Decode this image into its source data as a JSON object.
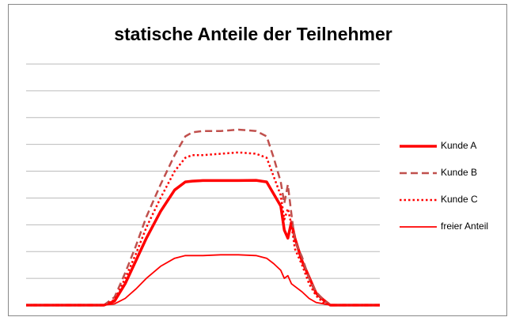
{
  "chart_data": {
    "type": "line",
    "title": "statische Anteile der Teilnehmer",
    "x": [
      0,
      20,
      22,
      25,
      28,
      31,
      34,
      38,
      42,
      45,
      47,
      50,
      55,
      60,
      65,
      68,
      70,
      72,
      73,
      74,
      75,
      76,
      78,
      80,
      82,
      84,
      86,
      88,
      90,
      100
    ],
    "xlim": [
      0,
      100
    ],
    "ylim": [
      0,
      9
    ],
    "yticks": [
      0,
      1,
      2,
      3,
      4,
      5,
      6,
      7,
      8,
      9
    ],
    "grid": true,
    "legend": "right",
    "series": [
      {
        "name": "Kunde A",
        "color": "#ff0000",
        "dash": "solid",
        "width": 3.5,
        "values": [
          0,
          0,
          0,
          0.15,
          0.8,
          1.65,
          2.5,
          3.5,
          4.3,
          4.6,
          4.63,
          4.65,
          4.65,
          4.65,
          4.66,
          4.6,
          4.15,
          3.7,
          2.8,
          2.5,
          3.1,
          2.5,
          1.65,
          1.05,
          0.45,
          0.2,
          0,
          0,
          0,
          0
        ]
      },
      {
        "name": "Kunde B",
        "color": "#c0504d",
        "dash": "dashed",
        "width": 2.5,
        "values": [
          0,
          0,
          0,
          0.3,
          1.2,
          2.2,
          3.3,
          4.5,
          5.6,
          6.3,
          6.45,
          6.5,
          6.5,
          6.55,
          6.5,
          6.3,
          5.5,
          4.6,
          3.8,
          4.5,
          3.4,
          2.4,
          1.8,
          1.0,
          0.5,
          0.2,
          0,
          0,
          0,
          0
        ]
      },
      {
        "name": "Kunde C",
        "color": "#ff0000",
        "dash": "dotted",
        "width": 2.5,
        "values": [
          0,
          0,
          0,
          0.2,
          1.0,
          1.9,
          2.9,
          4.0,
          5.0,
          5.5,
          5.6,
          5.6,
          5.65,
          5.7,
          5.65,
          5.5,
          4.8,
          4.1,
          3.2,
          3.6,
          3.0,
          2.1,
          1.5,
          0.8,
          0.35,
          0.1,
          0,
          0,
          0,
          0
        ]
      },
      {
        "name": "freier Anteil",
        "color": "#ff0000",
        "dash": "solid",
        "width": 1.8,
        "values": [
          0,
          0,
          0,
          0.05,
          0.25,
          0.6,
          1.0,
          1.45,
          1.75,
          1.85,
          1.85,
          1.85,
          1.88,
          1.88,
          1.85,
          1.75,
          1.55,
          1.3,
          1.0,
          1.1,
          0.8,
          0.7,
          0.5,
          0.25,
          0.1,
          0.05,
          0,
          0,
          0,
          0
        ]
      }
    ]
  }
}
